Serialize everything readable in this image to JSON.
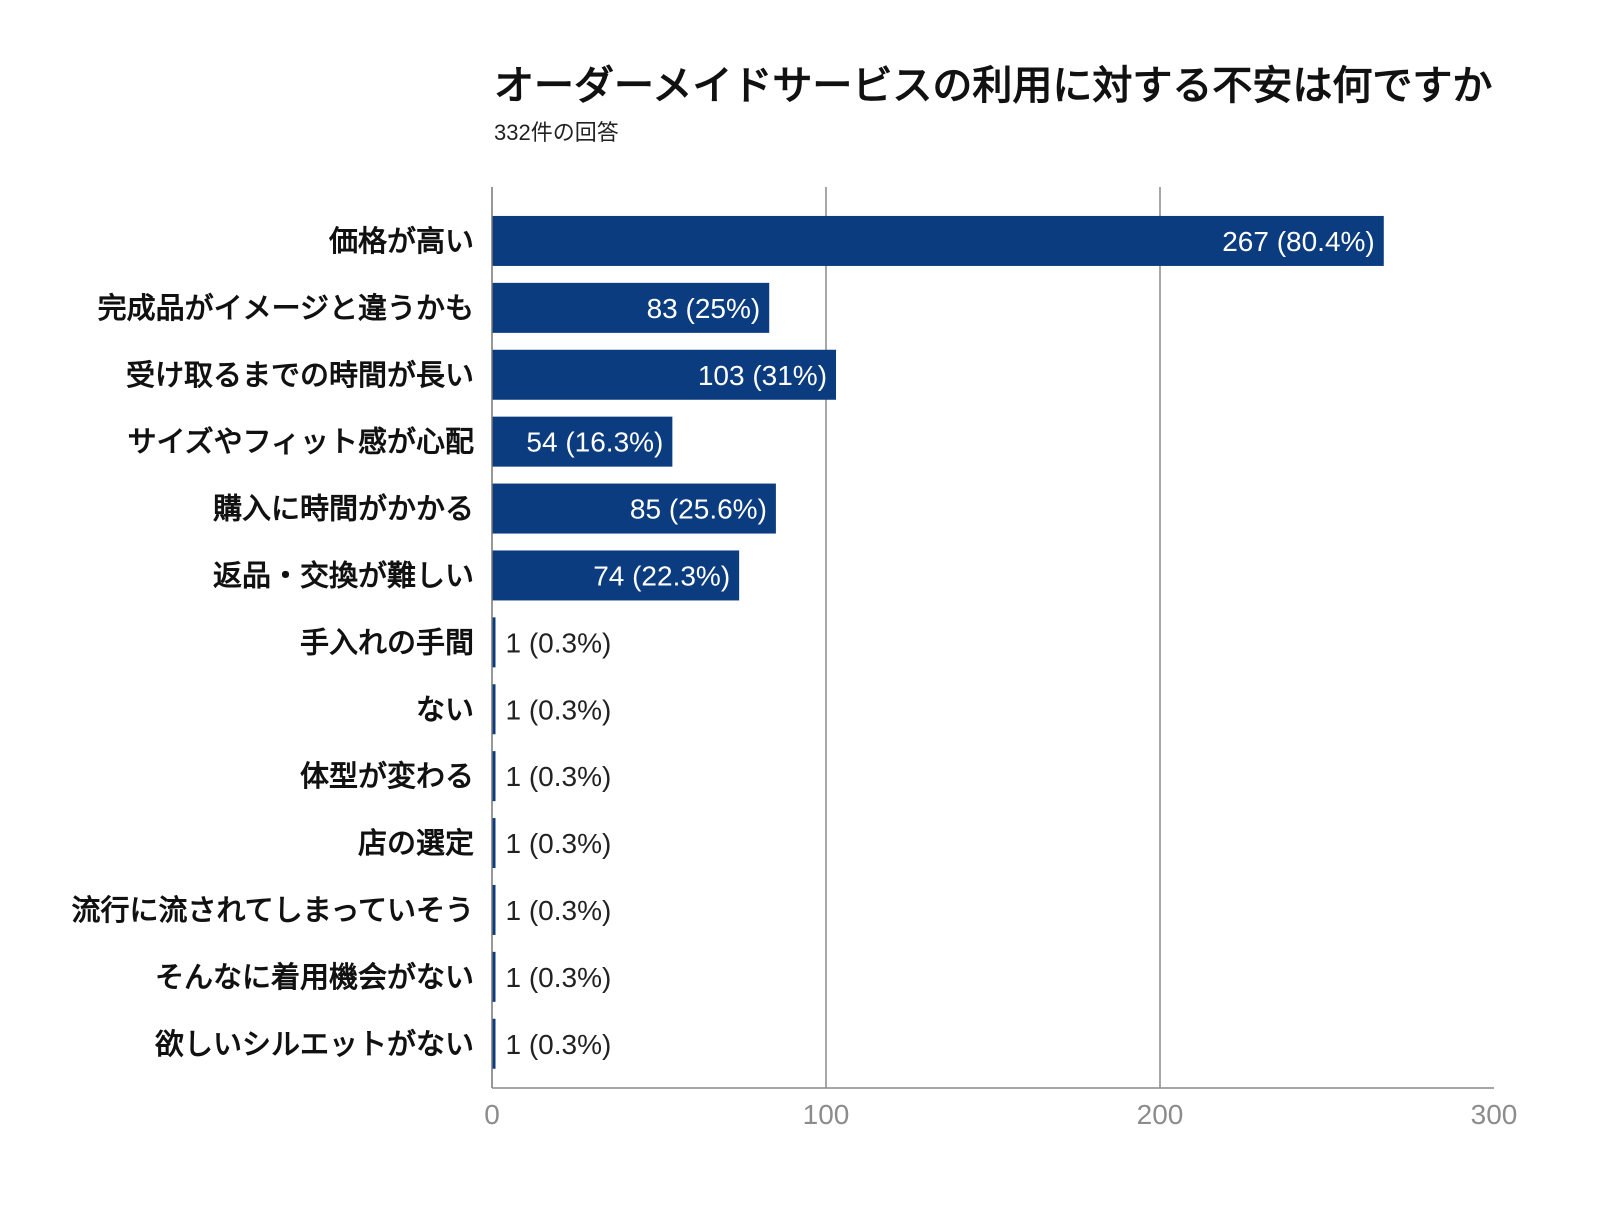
{
  "chart_data": {
    "type": "bar",
    "orientation": "horizontal",
    "title": "オーダーメイドサービスの利用に対する不安は何ですか",
    "subtitle": "332件の回答",
    "categories": [
      "価格が高い",
      "完成品がイメージと違うかも",
      "受け取るまでの時間が長い",
      "サイズやフィット感が心配",
      "購入に時間がかかる",
      "返品・交換が難しい",
      "手入れの手間",
      "ない",
      "体型が変わる",
      "店の選定",
      "流行に流されてしまっていそう",
      "そんなに着用機会がない",
      "欲しいシルエットがない"
    ],
    "values": [
      267,
      83,
      103,
      54,
      85,
      74,
      1,
      1,
      1,
      1,
      1,
      1,
      1
    ],
    "data_labels": [
      "267 (80.4%)",
      "83 (25%)",
      "103 (31%)",
      "54 (16.3%)",
      "85 (25.6%)",
      "74 (22.3%)",
      "1 (0.3%)",
      "1 (0.3%)",
      "1 (0.3%)",
      "1 (0.3%)",
      "1 (0.3%)",
      "1 (0.3%)",
      "1 (0.3%)"
    ],
    "xlabel": "",
    "ylabel": "",
    "xlim": [
      0,
      300
    ],
    "x_ticks": [
      0,
      100,
      200,
      300
    ],
    "grid": true,
    "bar_color": "#0b3c80",
    "grid_color": "#8a8a8a",
    "tick_label_color": "#8c8c8c"
  }
}
